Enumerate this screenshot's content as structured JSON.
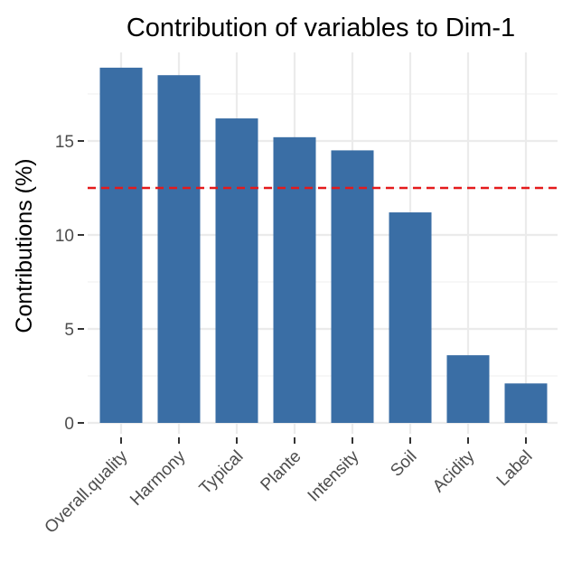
{
  "chart_data": {
    "type": "bar",
    "title": "Contribution of variables to Dim-1",
    "xlabel": "",
    "ylabel": "Contributions (%)",
    "categories": [
      "Overall.quality",
      "Harmony",
      "Typical",
      "Plante",
      "Intensity",
      "Soil",
      "Acidity",
      "Label"
    ],
    "values": [
      18.9,
      18.5,
      16.2,
      15.2,
      14.5,
      11.2,
      3.6,
      2.1
    ],
    "reference_line": 12.5,
    "ylim": [
      0,
      19.9
    ],
    "yticks": [
      0,
      5,
      10,
      15
    ],
    "grid": true,
    "colors": {
      "bar": "#3a6ea5",
      "reference_line": "#e41a1c",
      "grid_major": "#ebebeb",
      "grid_minor": "#f2f2f2"
    }
  }
}
